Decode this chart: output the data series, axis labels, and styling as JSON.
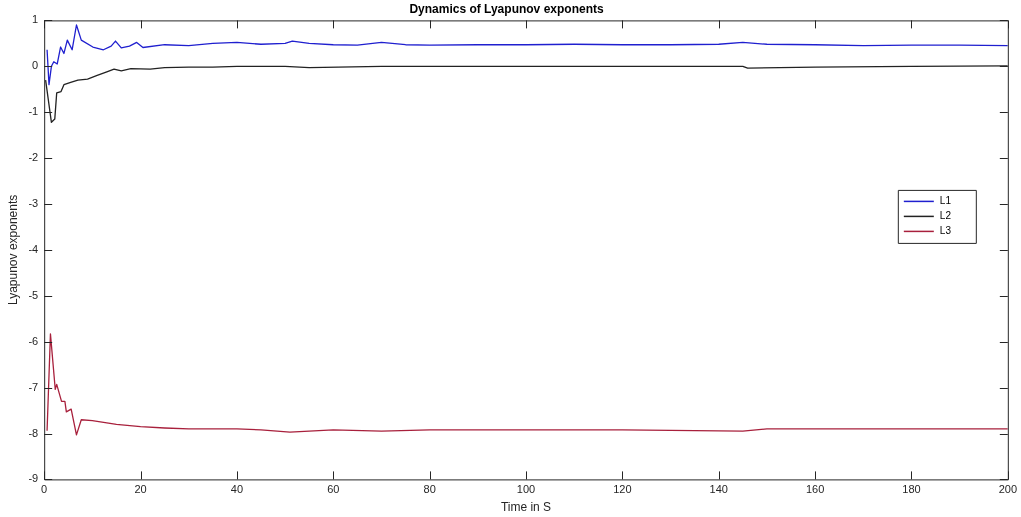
{
  "chart_data": {
    "type": "line",
    "title": "Dynamics of Lyapunov exponents",
    "xlabel": "Time in S",
    "ylabel": "Lyapunov exponents",
    "xlim": [
      0,
      200
    ],
    "xticks": [
      0,
      20,
      40,
      60,
      80,
      100,
      120,
      140,
      160,
      180,
      200
    ],
    "ylim": [
      -9,
      1
    ],
    "yticks": [
      -9,
      -8,
      -7,
      -6,
      -5,
      -4,
      -3,
      -2,
      -1,
      0,
      1
    ],
    "grid": false,
    "legend": "right",
    "marker": "none",
    "line_style": "solid",
    "series": [
      {
        "name": "L1",
        "color": "#1f1fcf",
        "x": [
          0.6,
          1.0,
          1.5,
          2.0,
          2.7,
          3.4,
          4.1,
          4.8,
          5.8,
          6.7,
          7.7,
          10.1,
          12.3,
          13.9,
          14.8,
          16,
          17.7,
          19.2,
          20.5,
          25,
          30,
          35,
          40,
          45,
          50,
          51.5,
          55,
          60,
          65,
          70,
          75,
          80,
          90,
          100,
          110,
          120,
          130,
          140,
          145,
          150,
          160,
          170,
          180,
          190,
          200
        ],
        "values": [
          0.36,
          -0.4,
          0.0,
          0.1,
          0.05,
          0.42,
          0.28,
          0.57,
          0.36,
          0.9,
          0.57,
          0.42,
          0.36,
          0.44,
          0.55,
          0.4,
          0.44,
          0.52,
          0.41,
          0.47,
          0.45,
          0.5,
          0.52,
          0.48,
          0.5,
          0.55,
          0.5,
          0.47,
          0.46,
          0.52,
          0.47,
          0.46,
          0.47,
          0.47,
          0.48,
          0.47,
          0.47,
          0.48,
          0.52,
          0.48,
          0.47,
          0.45,
          0.46,
          0.46,
          0.45
        ]
      },
      {
        "name": "L2",
        "color": "#222222",
        "x": [
          0.3,
          1.5,
          2.2,
          2.6,
          3.5,
          4.1,
          5.5,
          7,
          9,
          11,
          13,
          14.5,
          16,
          18,
          22,
          25,
          30,
          35,
          40,
          50,
          55,
          70,
          100,
          145,
          146,
          160,
          180,
          200
        ],
        "values": [
          -0.3,
          -1.22,
          -1.15,
          -0.58,
          -0.55,
          -0.4,
          -0.35,
          -0.3,
          -0.28,
          -0.2,
          -0.12,
          -0.06,
          -0.1,
          -0.05,
          -0.06,
          -0.03,
          -0.02,
          -0.02,
          0.0,
          0.0,
          -0.03,
          0.0,
          0.0,
          0.0,
          -0.04,
          -0.02,
          0.0,
          0.01
        ]
      },
      {
        "name": "L3",
        "color": "#a8203c",
        "x": [
          0.6,
          1.3,
          2.3,
          2.6,
          3.6,
          4.3,
          4.6,
          5.6,
          6.7,
          7.7,
          10,
          12,
          15,
          20,
          25,
          30,
          40,
          45,
          51,
          60,
          70,
          80,
          100,
          120,
          145,
          150,
          170,
          200
        ],
        "values": [
          -7.94,
          -5.83,
          -7.04,
          -6.93,
          -7.3,
          -7.3,
          -7.53,
          -7.47,
          -8.03,
          -7.7,
          -7.72,
          -7.75,
          -7.8,
          -7.85,
          -7.88,
          -7.9,
          -7.9,
          -7.92,
          -7.97,
          -7.92,
          -7.95,
          -7.92,
          -7.92,
          -7.92,
          -7.95,
          -7.9,
          -7.9,
          -7.9
        ]
      }
    ]
  }
}
